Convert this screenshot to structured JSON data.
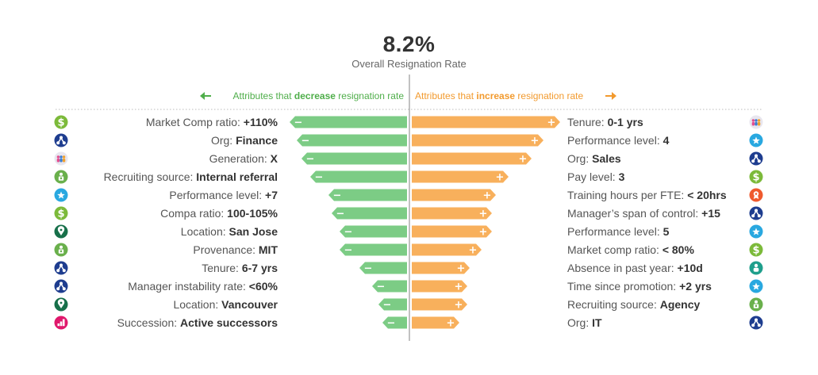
{
  "headline": {
    "value": "8.2%",
    "label": "Overall Resignation Rate"
  },
  "captions": {
    "decrease": {
      "pre": "Attributes that ",
      "bold": "decrease",
      "post": " resignation rate"
    },
    "increase": {
      "pre": "Attributes that ",
      "bold": "increase",
      "post": " resignation rate"
    }
  },
  "colors": {
    "decrease": "#7ccc85",
    "increase": "#f8b05c",
    "decrease_text": "#4fae4a",
    "increase_text": "#f29a2e",
    "center_line": "#999999",
    "dotted_rule": "#bbbbbb"
  },
  "chart_data": {
    "type": "bar",
    "orientation": "horizontal-diverging",
    "baseline_label": "8.2%",
    "series": [
      {
        "name": "Attributes that decrease resignation rate",
        "direction": "decrease",
        "sign": "−",
        "items": [
          {
            "label": "Market Comp ratio: ",
            "value_text": "+110%",
            "magnitude": 148,
            "icon": "dollar-icon",
            "icon_color": "#7cba3a"
          },
          {
            "label": "Org: ",
            "value_text": "Finance",
            "magnitude": 139,
            "icon": "org-chart-icon",
            "icon_color": "#1e3d8f"
          },
          {
            "label": "Generation: ",
            "value_text": "X",
            "magnitude": 133,
            "icon": "people-icon",
            "icon_color": "#e8e6ef"
          },
          {
            "label": "Recruiting source: ",
            "value_text": "Internal referral",
            "magnitude": 122,
            "icon": "recruit-icon",
            "icon_color": "#6ab04c"
          },
          {
            "label": "Performance level: ",
            "value_text": "+7",
            "magnitude": 99,
            "icon": "star-icon",
            "icon_color": "#29a8e0"
          },
          {
            "label": "Compa ratio: ",
            "value_text": "100-105%",
            "magnitude": 95,
            "icon": "dollar-icon",
            "icon_color": "#7cba3a"
          },
          {
            "label": "Location: ",
            "value_text": "San Jose",
            "magnitude": 85,
            "icon": "location-pin-icon",
            "icon_color": "#17704a"
          },
          {
            "label": "Provenance: ",
            "value_text": "MIT",
            "magnitude": 85,
            "icon": "recruit-icon",
            "icon_color": "#6ab04c"
          },
          {
            "label": "Tenure: ",
            "value_text": "6-7 yrs",
            "magnitude": 60,
            "icon": "org-chart-icon",
            "icon_color": "#1e3d8f"
          },
          {
            "label": "Manager instability rate: ",
            "value_text": "<60%",
            "magnitude": 44,
            "icon": "org-chart-icon",
            "icon_color": "#1e3d8f"
          },
          {
            "label": "Location: ",
            "value_text": "Vancouver",
            "magnitude": 36,
            "icon": "location-pin-icon",
            "icon_color": "#17704a"
          },
          {
            "label": "Succession: ",
            "value_text": "Active successors",
            "magnitude": 31,
            "icon": "succession-icon",
            "icon_color": "#e0186c"
          }
        ]
      },
      {
        "name": "Attributes that increase resignation rate",
        "direction": "increase",
        "sign": "+",
        "items": [
          {
            "label": "Tenure: ",
            "value_text": "0-1 yrs",
            "magnitude": 187,
            "icon": "people-icon",
            "icon_color": "#e8e6ef"
          },
          {
            "label": "Performance level: ",
            "value_text": "4",
            "magnitude": 166,
            "icon": "star-icon",
            "icon_color": "#29a8e0"
          },
          {
            "label": "Org: ",
            "value_text": "Sales",
            "magnitude": 151,
            "icon": "org-chart-icon",
            "icon_color": "#1e3d8f"
          },
          {
            "label": "Pay level: ",
            "value_text": "3",
            "magnitude": 122,
            "icon": "dollar-icon",
            "icon_color": "#7cba3a"
          },
          {
            "label": "Training hours per FTE: ",
            "value_text": "< 20hrs",
            "magnitude": 106,
            "icon": "award-icon",
            "icon_color": "#ef5a2e"
          },
          {
            "label": "Manager’s span of control: ",
            "value_text": "+15",
            "magnitude": 101,
            "icon": "org-chart-icon",
            "icon_color": "#1e3d8f"
          },
          {
            "label": "Performance level: ",
            "value_text": "5",
            "magnitude": 101,
            "icon": "star-icon",
            "icon_color": "#29a8e0"
          },
          {
            "label": "Market comp ratio: ",
            "value_text": "< 80%",
            "magnitude": 88,
            "icon": "dollar-icon",
            "icon_color": "#7cba3a"
          },
          {
            "label": "Absence in past year: ",
            "value_text": "+10d",
            "magnitude": 73,
            "icon": "person-icon",
            "icon_color": "#1f9f8c"
          },
          {
            "label": "Time since promotion: ",
            "value_text": "+2 yrs",
            "magnitude": 70,
            "icon": "star-icon",
            "icon_color": "#29a8e0"
          },
          {
            "label": "Recruiting source: ",
            "value_text": "Agency",
            "magnitude": 70,
            "icon": "recruit-icon",
            "icon_color": "#6ab04c"
          },
          {
            "label": "Org: ",
            "value_text": "IT",
            "magnitude": 60,
            "icon": "org-chart-icon",
            "icon_color": "#1e3d8f"
          }
        ]
      }
    ],
    "grid": false,
    "legend": "top-center"
  }
}
